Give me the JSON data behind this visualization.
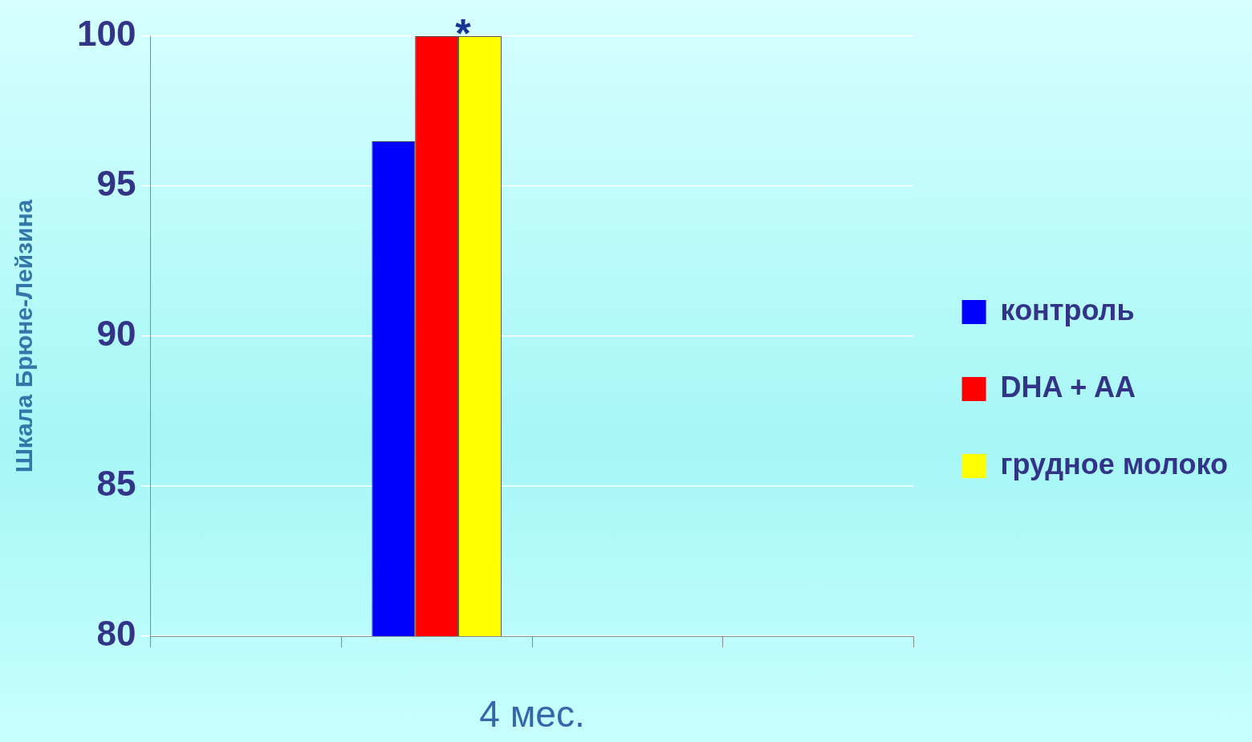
{
  "chart_data": {
    "type": "bar",
    "ylabel": "Шкала Брюне-Лейзина",
    "xlabel": "4 мес.",
    "categories": [
      null,
      null,
      null,
      null
    ],
    "series": [
      {
        "name": "контроль",
        "color": "#0000ff",
        "values": [
          null,
          96.5,
          null,
          null
        ]
      },
      {
        "name": "DHA + AA",
        "color": "#ff0000",
        "values": [
          null,
          100,
          null,
          null
        ]
      },
      {
        "name": "грудное молоко",
        "color": "#ffff00",
        "values": [
          null,
          100,
          null,
          null
        ]
      }
    ],
    "ylim": [
      80,
      100
    ],
    "yticks": [
      80,
      85,
      90,
      95,
      100
    ],
    "grid": "y",
    "legend": "right",
    "annotations": [
      {
        "text": "*",
        "y": 100
      }
    ]
  }
}
